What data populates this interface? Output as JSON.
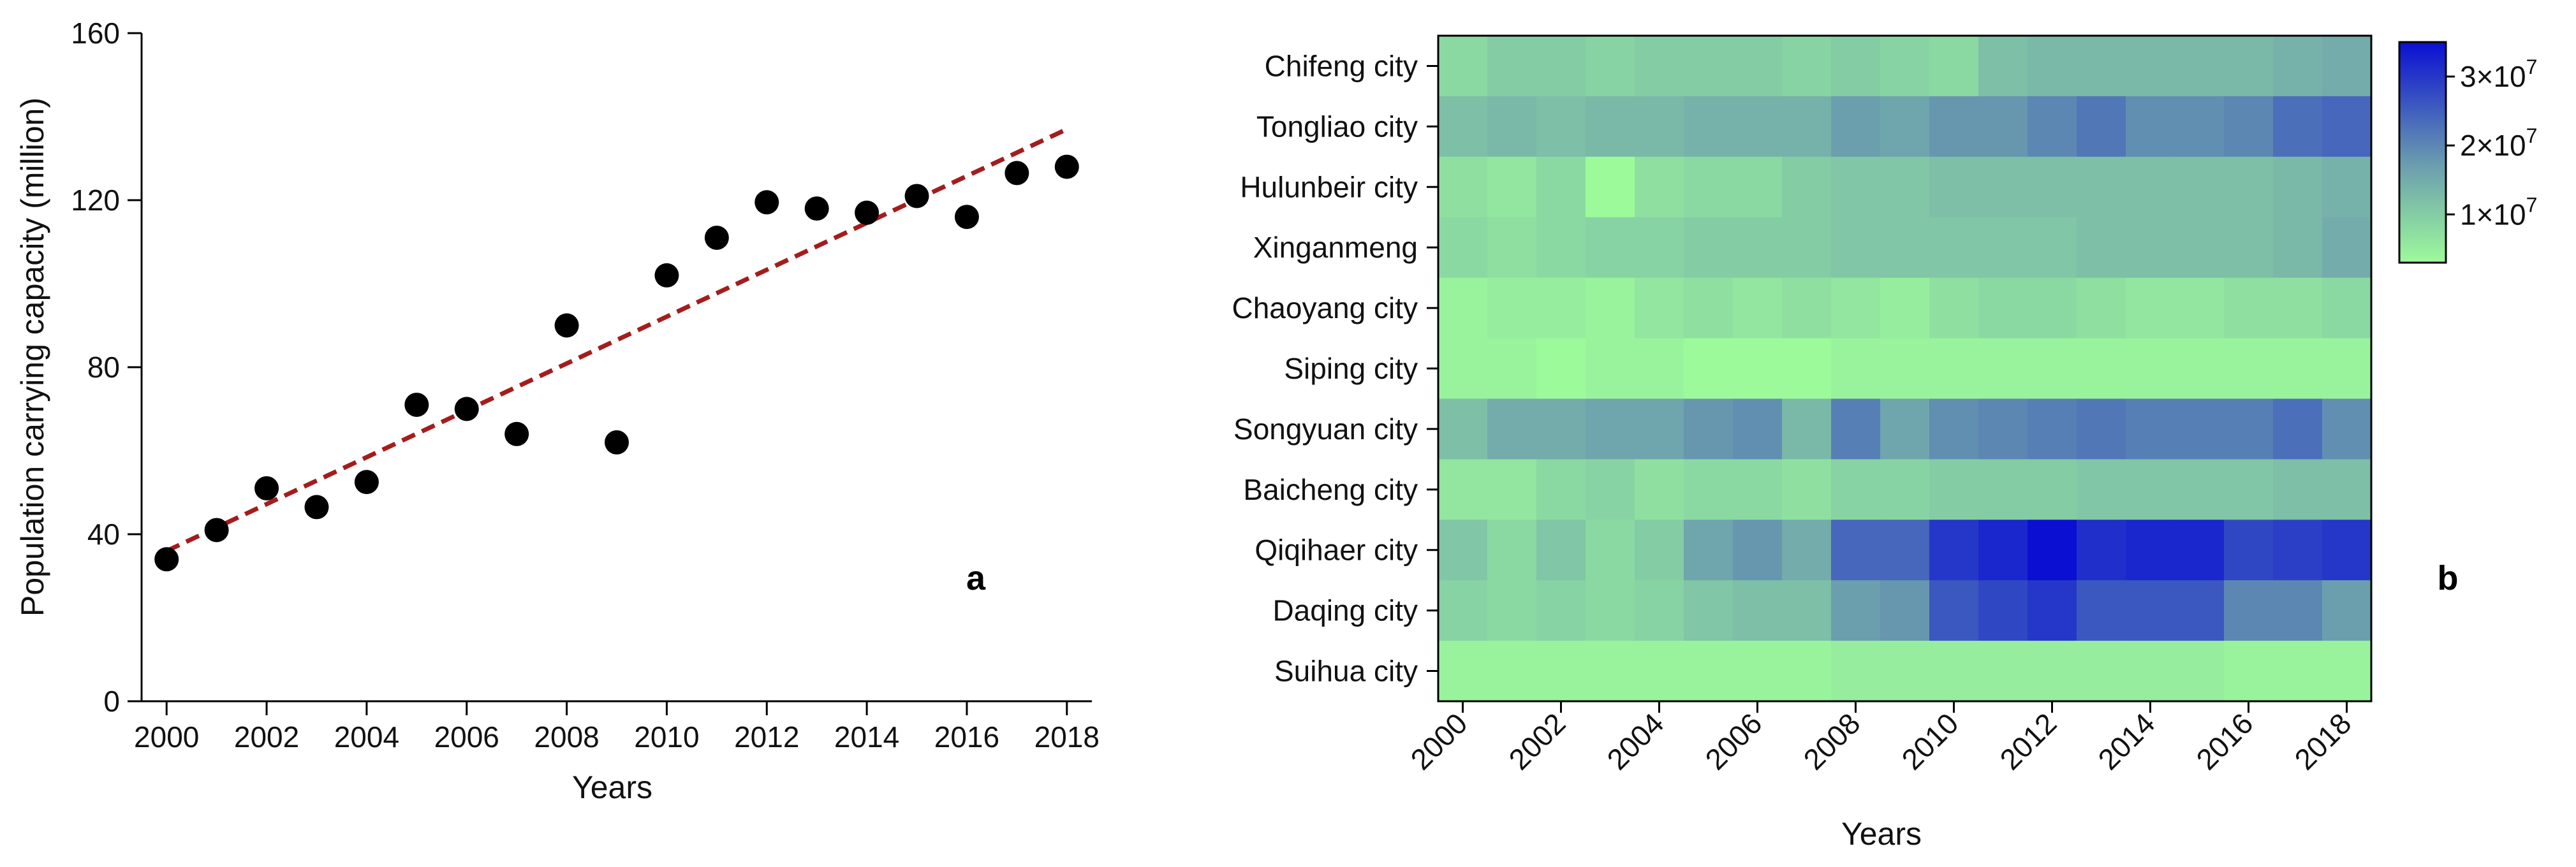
{
  "chart_data": [
    {
      "type": "scatter",
      "panel_label": "a",
      "title": "",
      "xlabel": "Years",
      "ylabel": "Population carrying capacity (million)",
      "xlim": [
        1999.5,
        2018.5
      ],
      "ylim": [
        0,
        160
      ],
      "x_ticks": [
        "2000",
        "2002",
        "2004",
        "2006",
        "2008",
        "2010",
        "2012",
        "2014",
        "2016",
        "2018"
      ],
      "y_ticks": [
        "0",
        "40",
        "80",
        "120",
        "160"
      ],
      "x": [
        2000,
        2001,
        2002,
        2003,
        2004,
        2005,
        2006,
        2007,
        2008,
        2009,
        2010,
        2011,
        2012,
        2013,
        2014,
        2015,
        2016,
        2017,
        2018
      ],
      "y": [
        34,
        41,
        51,
        46.5,
        52.5,
        71,
        70,
        64,
        90,
        62,
        102,
        111,
        119.5,
        118,
        117,
        121,
        116,
        126.5,
        128
      ],
      "trend_line": {
        "x": [
          2000,
          2018
        ],
        "y": [
          36,
          137
        ],
        "style": "dashed",
        "color": "#a51c1c"
      },
      "point_color": "#000000",
      "grid": false
    },
    {
      "type": "heatmap",
      "panel_label": "b",
      "xlabel": "Years",
      "ylabel": "",
      "x": [
        "2000",
        "2001",
        "2002",
        "2003",
        "2004",
        "2005",
        "2006",
        "2007",
        "2008",
        "2009",
        "2010",
        "2011",
        "2012",
        "2013",
        "2014",
        "2015",
        "2016",
        "2017",
        "2018"
      ],
      "x_tick_labels": [
        "2000",
        "2002",
        "2004",
        "2006",
        "2008",
        "2010",
        "2012",
        "2014",
        "2016",
        "2018"
      ],
      "rows": [
        "Chifeng city",
        "Tongliao city",
        "Hulunbeir city",
        "Xinganmeng",
        "Chaoyang city",
        "Siping city",
        "Songyuan city",
        "Baicheng city",
        "Qiqihaer city",
        "Daqing city",
        "Suihua city"
      ],
      "values": [
        [
          8,
          10,
          10,
          9,
          10,
          10,
          10,
          9,
          10,
          9,
          8,
          12,
          13,
          13,
          13,
          13,
          13,
          14,
          15
        ],
        [
          12,
          13,
          12,
          13,
          13,
          14,
          14,
          14,
          17,
          16,
          18,
          18,
          20,
          22,
          19,
          19,
          20,
          23,
          24
        ],
        [
          7,
          6,
          8,
          3,
          7,
          8,
          8,
          10,
          11,
          11,
          12,
          12,
          12,
          12,
          12,
          12,
          12,
          13,
          14
        ],
        [
          8,
          7,
          8,
          9,
          9,
          10,
          10,
          10,
          11,
          11,
          11,
          11,
          11,
          12,
          12,
          12,
          12,
          13,
          15
        ],
        [
          4,
          5,
          5,
          4,
          6,
          7,
          6,
          7,
          6,
          5,
          7,
          8,
          8,
          7,
          6,
          6,
          7,
          7,
          8
        ],
        [
          4,
          4,
          3,
          4,
          4,
          3,
          3,
          3,
          4,
          4,
          4,
          4,
          4,
          4,
          4,
          4,
          4,
          4,
          4
        ],
        [
          12,
          15,
          15,
          16,
          16,
          18,
          19,
          13,
          21,
          16,
          19,
          20,
          21,
          22,
          21,
          21,
          21,
          23,
          19
        ],
        [
          6,
          6,
          8,
          9,
          7,
          8,
          8,
          7,
          9,
          9,
          10,
          10,
          10,
          11,
          11,
          11,
          11,
          12,
          12
        ],
        [
          11,
          8,
          11,
          8,
          10,
          16,
          18,
          15,
          24,
          24,
          30,
          32,
          35,
          31,
          32,
          32,
          28,
          29,
          30
        ],
        [
          9,
          8,
          9,
          8,
          9,
          11,
          12,
          12,
          17,
          18,
          26,
          28,
          30,
          26,
          26,
          26,
          20,
          20,
          17
        ],
        [
          4,
          4,
          4,
          4,
          4,
          4,
          4,
          4,
          5,
          5,
          5,
          5,
          5,
          5,
          5,
          5,
          4,
          4,
          4
        ]
      ],
      "value_scale": 1000000,
      "colorbar": {
        "min": 3,
        "max": 35,
        "ticks": [
          10,
          20,
          30
        ],
        "tick_labels": [
          "1×10",
          "2×10",
          "3×10"
        ],
        "tick_exponent": "7",
        "color_low": "#9dfa9b",
        "color_mid": "#6a9cae",
        "color_high": "#0a0fd2"
      }
    }
  ]
}
